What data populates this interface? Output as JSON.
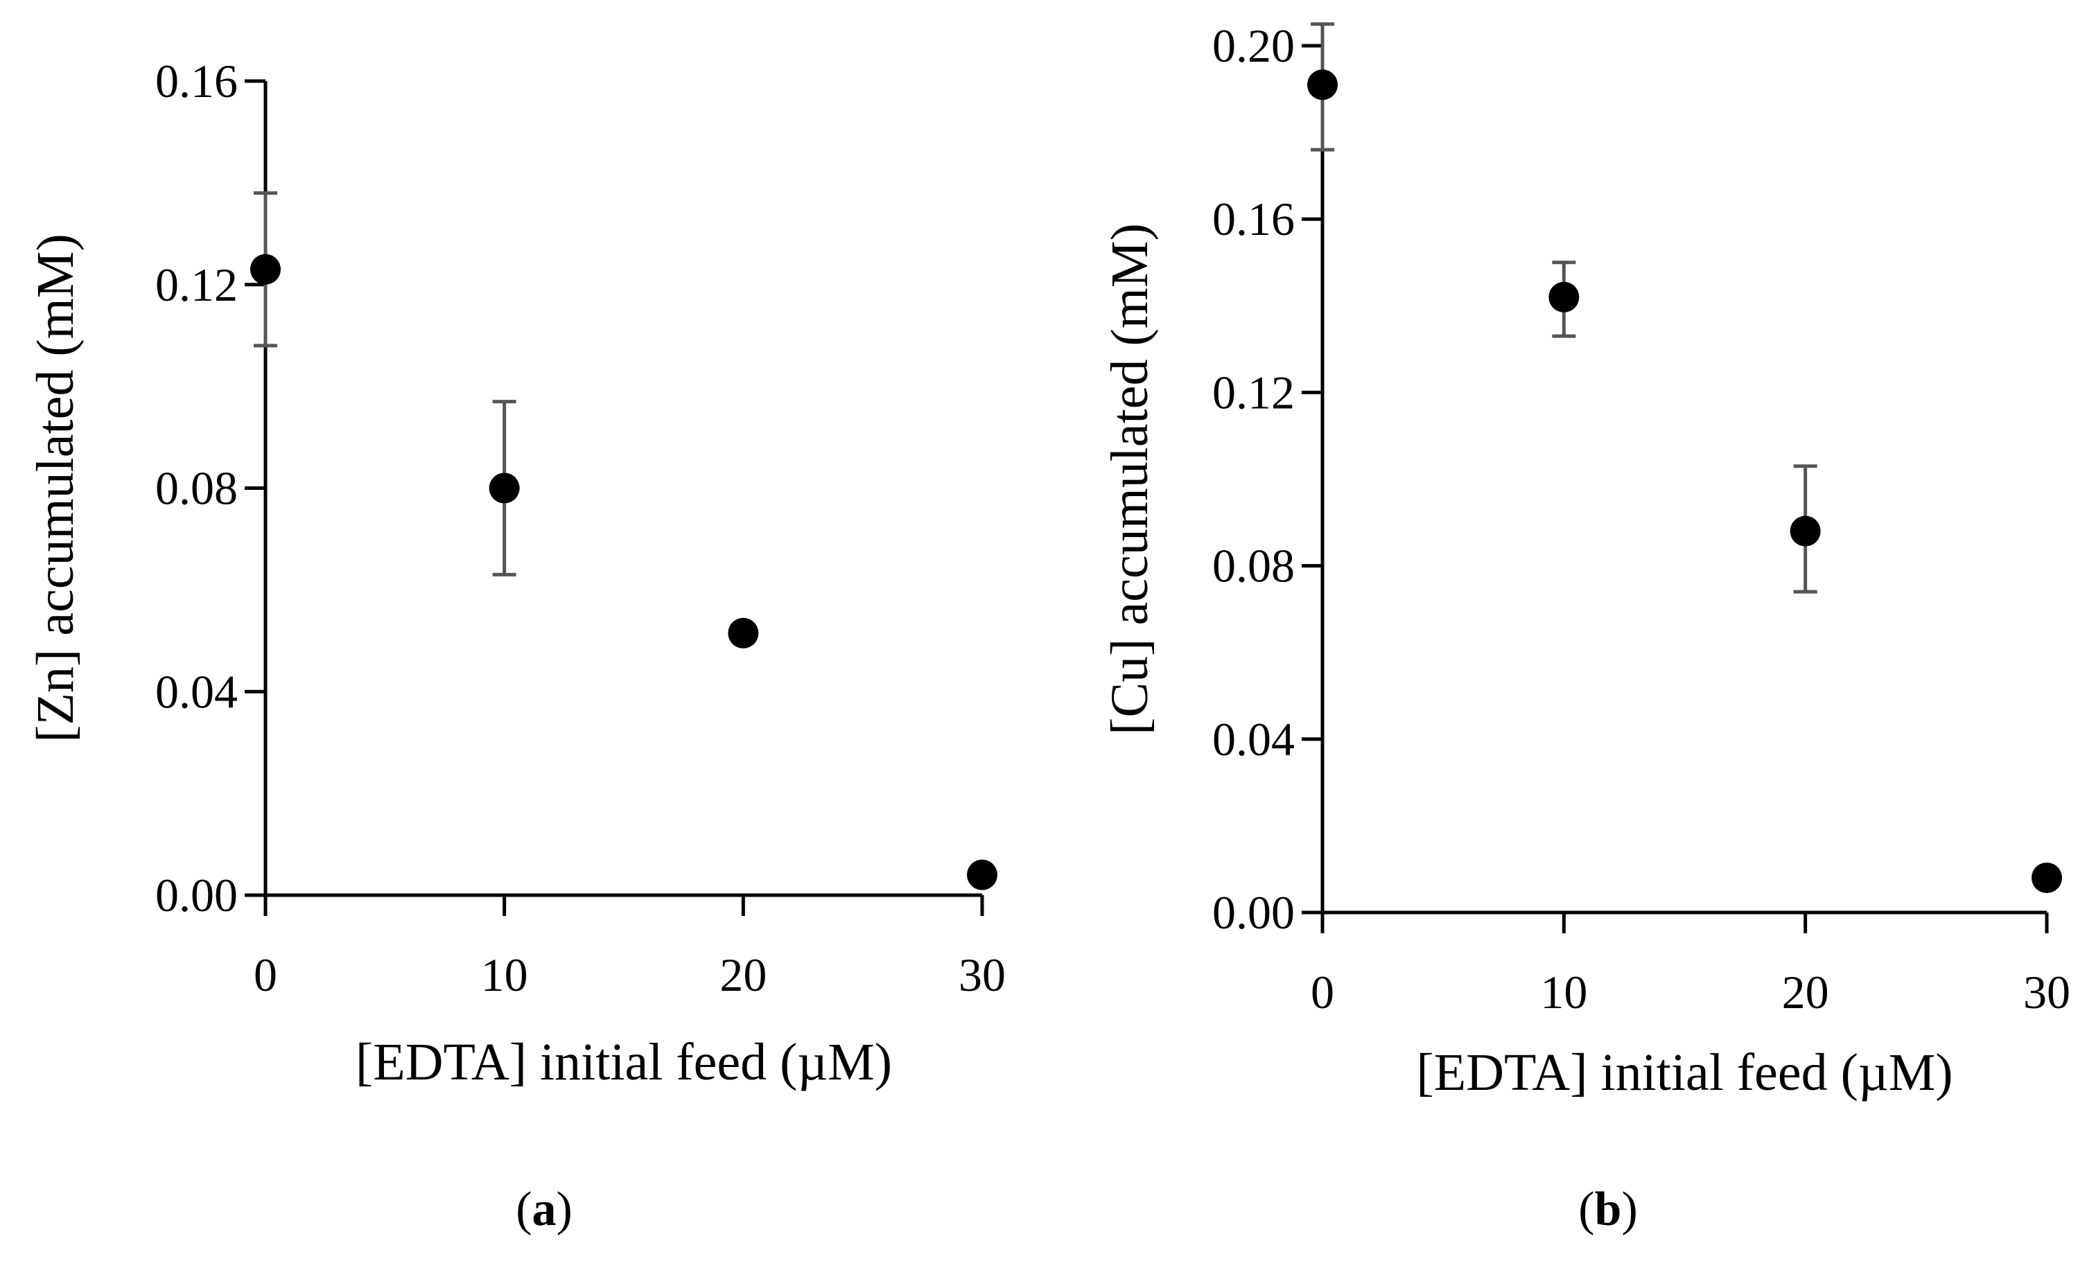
{
  "chart_data": [
    {
      "type": "scatter",
      "panel_label": "a",
      "xlabel": "[EDTA] initial feed (µM)",
      "ylabel": "[Zn] accumulated (mM)",
      "xlim": [
        0,
        30
      ],
      "ylim": [
        0,
        0.16
      ],
      "xticks": [
        "0",
        "10",
        "20",
        "30"
      ],
      "xtick_values": [
        0,
        10,
        20,
        30
      ],
      "yticks": [
        "0.00",
        "0.04",
        "0.08",
        "0.12",
        "0.16"
      ],
      "ytick_values": [
        0,
        0.04,
        0.08,
        0.12,
        0.16
      ],
      "grid": false,
      "series": [
        {
          "name": "Zn",
          "x": [
            0,
            10,
            20,
            30
          ],
          "y": [
            0.123,
            0.08,
            0.0515,
            0.004
          ],
          "yerr_low": [
            0.108,
            0.063,
            null,
            null
          ],
          "yerr_high": [
            0.138,
            0.097,
            null,
            null
          ]
        }
      ]
    },
    {
      "type": "scatter",
      "panel_label": "b",
      "xlabel": "[EDTA] initial feed (µM)",
      "ylabel": "[Cu] accumulated (mM)",
      "xlim": [
        0,
        30
      ],
      "ylim": [
        0,
        0.2
      ],
      "xticks": [
        "0",
        "10",
        "20",
        "30"
      ],
      "xtick_values": [
        0,
        10,
        20,
        30
      ],
      "yticks": [
        "0.00",
        "0.04",
        "0.08",
        "0.12",
        "0.16",
        "0.20"
      ],
      "ytick_values": [
        0,
        0.04,
        0.08,
        0.12,
        0.16,
        0.2
      ],
      "grid": false,
      "series": [
        {
          "name": "Cu",
          "x": [
            0,
            10,
            20,
            30
          ],
          "y": [
            0.191,
            0.142,
            0.088,
            0.008
          ],
          "yerr_low": [
            0.176,
            0.133,
            0.074,
            null
          ],
          "yerr_high": [
            0.205,
            0.15,
            0.103,
            null
          ]
        }
      ]
    }
  ]
}
